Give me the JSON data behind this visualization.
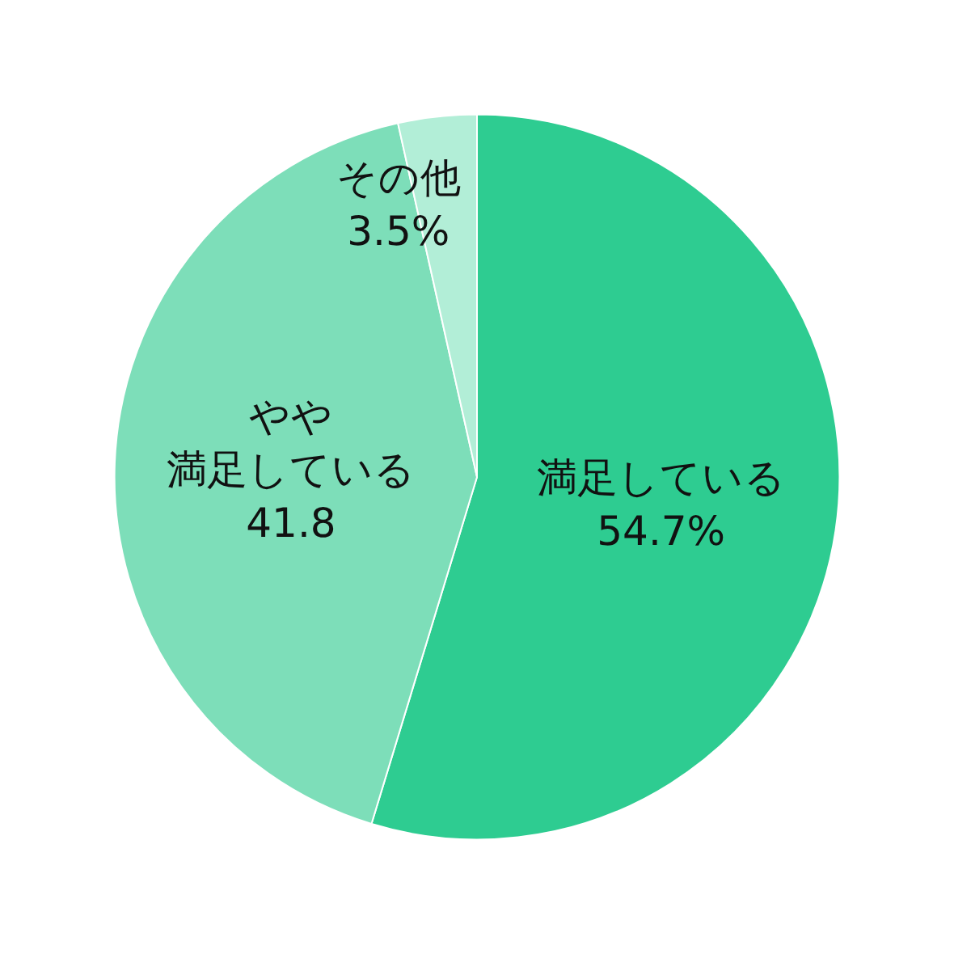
{
  "chart_data": {
    "type": "pie",
    "categories": [
      "満足している",
      "やや満足している",
      "その他"
    ],
    "values": [
      54.7,
      41.8,
      3.5
    ],
    "colors": [
      "#2ecc91",
      "#7ddeb9",
      "#b2eed7"
    ],
    "value_labels": [
      "54.7%",
      "41.8",
      "3.5%"
    ]
  }
}
